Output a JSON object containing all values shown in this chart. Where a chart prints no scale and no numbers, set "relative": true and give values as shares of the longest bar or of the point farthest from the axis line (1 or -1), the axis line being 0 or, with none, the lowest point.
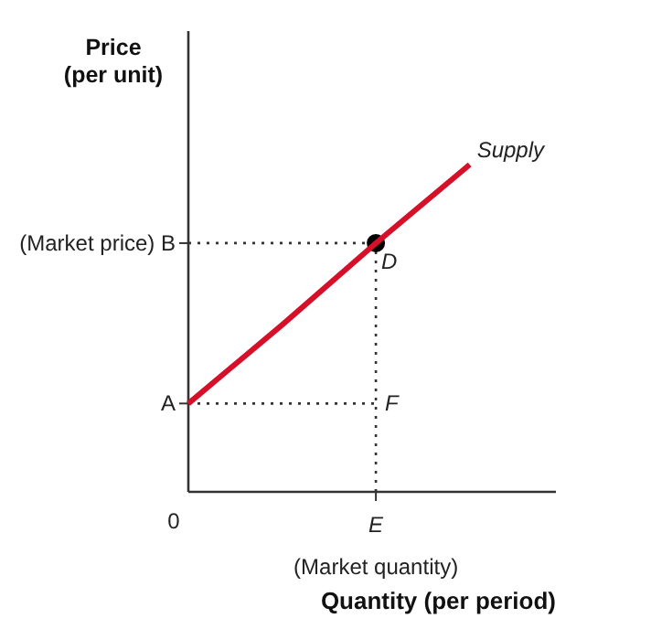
{
  "chart_data": {
    "type": "line",
    "relative": true,
    "ylabel": "Price\n(per unit)",
    "xlabel": "Quantity (per period)",
    "categories": [
      null,
      null,
      null,
      null
    ],
    "series": [
      {
        "name": "Supply",
        "color": "#d7102a",
        "values": [
          0.27,
          0.51,
          0.76,
          1.0
        ]
      }
    ],
    "ref_lines": [
      {
        "axis": "y",
        "value": 0.76,
        "label": "(Market price) B",
        "line_style": "dotted"
      },
      {
        "axis": "y",
        "value": 0.27,
        "label": "A",
        "line_style": "dotted"
      }
    ],
    "annotations": [
      "D",
      "F",
      "0",
      "(Market quantity)",
      "E"
    ],
    "legend": false,
    "grid": false
  }
}
